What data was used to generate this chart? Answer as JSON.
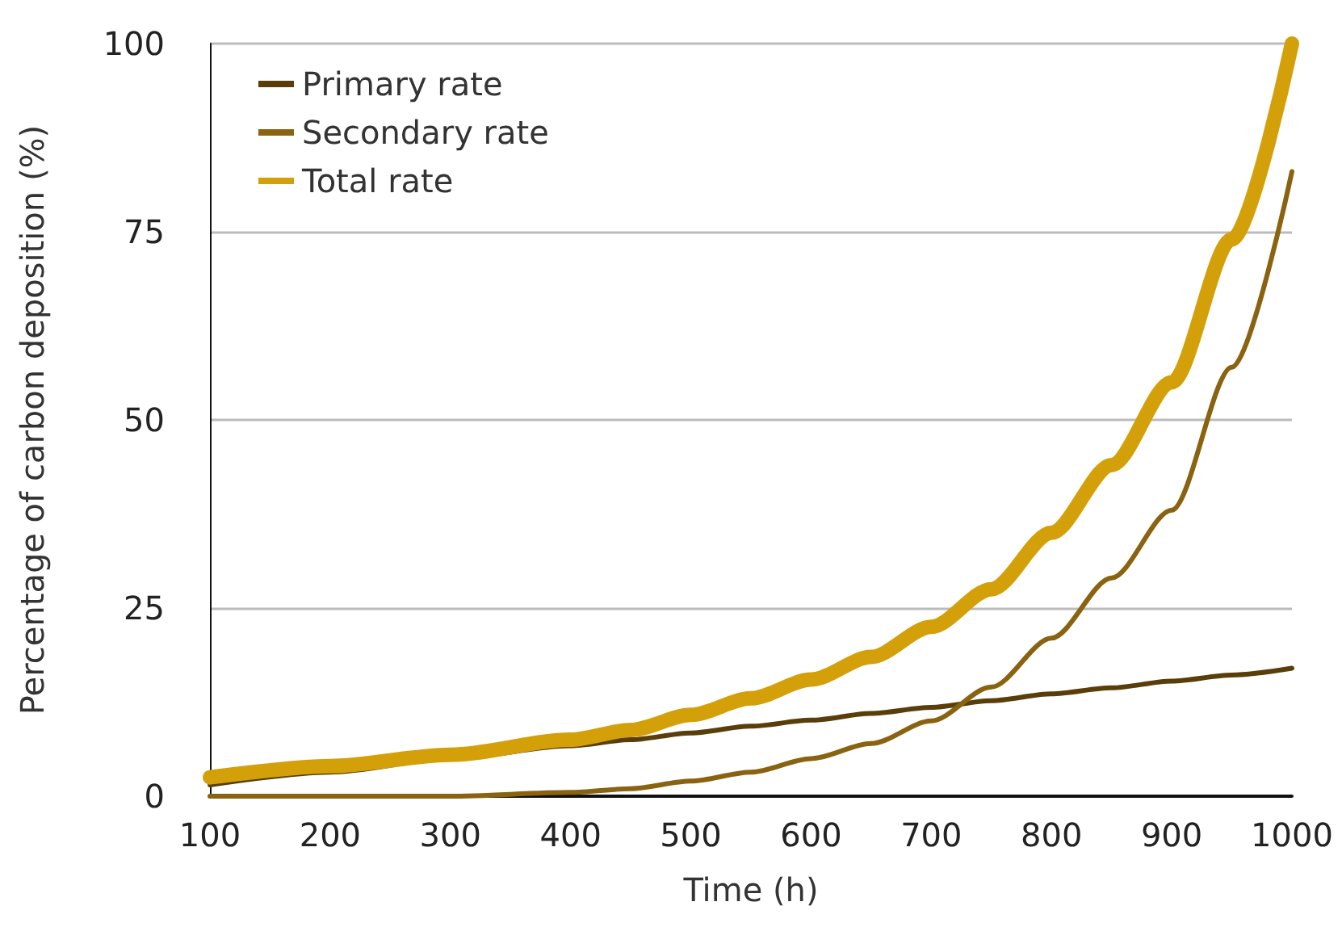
{
  "chart_data": {
    "type": "line",
    "xlabel": "Time (h)",
    "ylabel": "Percentage of carbon deposition (%)",
    "x": [
      100,
      200,
      300,
      400,
      450,
      500,
      550,
      600,
      650,
      700,
      750,
      800,
      850,
      900,
      950,
      1000
    ],
    "series": [
      {
        "name": "Primary rate",
        "color": "#5a3e0a",
        "values": [
          1.5,
          3.2,
          5,
          6.7,
          7.5,
          8.4,
          9.3,
          10.1,
          11,
          11.8,
          12.7,
          13.6,
          14.4,
          15.3,
          16.1,
          17
        ]
      },
      {
        "name": "Secondary rate",
        "color": "#8a6310",
        "values": [
          0,
          0,
          0,
          0.5,
          1,
          2,
          3.2,
          5,
          7,
          10,
          14.5,
          21,
          29,
          38,
          57,
          83
        ]
      },
      {
        "name": "Total rate",
        "color": "#d4a00a",
        "values": [
          2.5,
          4,
          5.5,
          7.5,
          8.8,
          10.8,
          13,
          15.5,
          18.5,
          22.5,
          27.5,
          35,
          44,
          55,
          74,
          100
        ]
      }
    ],
    "xlim": [
      100,
      1000
    ],
    "xticks": [
      100,
      200,
      300,
      400,
      500,
      600,
      700,
      800,
      900,
      1000
    ],
    "ylim": [
      0,
      100
    ],
    "yticks": [
      0,
      25,
      50,
      75,
      100
    ],
    "grid": "y",
    "legend": "top left",
    "marker": "none",
    "line_style": "solid"
  }
}
